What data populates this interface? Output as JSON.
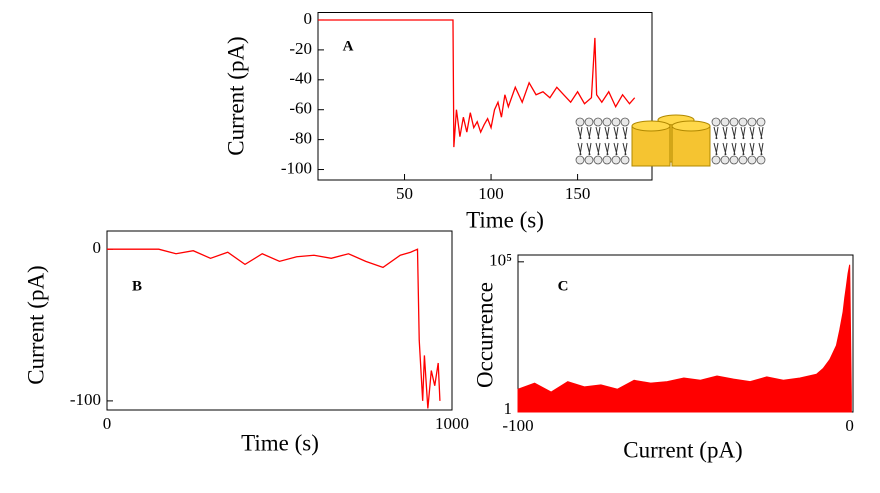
{
  "chart_data": [
    {
      "type": "line",
      "annotation": "A",
      "xlabel": "Time (s)",
      "ylabel": "Current (pA)",
      "color": "#ff0000",
      "x": [
        0,
        78,
        78.5,
        80,
        82,
        84,
        86,
        88,
        90,
        92,
        94,
        96,
        98,
        100,
        102,
        104,
        106,
        108,
        110,
        114,
        118,
        122,
        126,
        130,
        134,
        138,
        142,
        146,
        150,
        154,
        158,
        160,
        161,
        164,
        168,
        172,
        176,
        180,
        183
      ],
      "values": [
        0,
        0,
        -85,
        -60,
        -78,
        -65,
        -75,
        -62,
        -72,
        -68,
        -75,
        -70,
        -66,
        -72,
        -60,
        -55,
        -65,
        -50,
        -58,
        -45,
        -55,
        -42,
        -50,
        -48,
        -52,
        -45,
        -50,
        -55,
        -48,
        -56,
        -52,
        -12,
        -50,
        -55,
        -48,
        -58,
        -50,
        -56,
        -52
      ],
      "xlim": [
        0,
        193
      ],
      "ylim": [
        -107,
        5
      ],
      "xticks": [
        50,
        100,
        150
      ],
      "yticks": [
        0,
        -20,
        -40,
        -60,
        -80,
        -100
      ]
    },
    {
      "type": "line",
      "annotation": "B",
      "xlabel": "Time (s)",
      "ylabel": "Current (pA)",
      "color": "#ff0000",
      "x": [
        0,
        50,
        150,
        200,
        250,
        300,
        350,
        400,
        450,
        500,
        550,
        600,
        650,
        700,
        750,
        800,
        850,
        880,
        900,
        905,
        915,
        920,
        930,
        940,
        950,
        960,
        965
      ],
      "values": [
        0,
        0,
        0,
        -3,
        -1,
        -6,
        -2,
        -10,
        -3,
        -8,
        -5,
        -4,
        -6,
        -3,
        -8,
        -12,
        -4,
        -2,
        0,
        -60,
        -100,
        -70,
        -105,
        -80,
        -90,
        -75,
        -100
      ],
      "xlim": [
        0,
        1000
      ],
      "ylim": [
        -106,
        12
      ],
      "xticks": [
        0,
        1000
      ],
      "yticks": [
        0,
        -100
      ]
    },
    {
      "type": "area",
      "annotation": "C",
      "xlabel": "Current (pA)",
      "ylabel": "Occurrence",
      "color": "#ff0000",
      "log_y": true,
      "x": [
        -100,
        -95,
        -90,
        -85,
        -80,
        -75,
        -70,
        -65,
        -60,
        -55,
        -50,
        -45,
        -40,
        -35,
        -30,
        -25,
        -20,
        -15,
        -10,
        -8,
        -6,
        -4,
        -3,
        -2,
        -1.5,
        -1,
        -0.5,
        0,
        0.5
      ],
      "values": [
        5,
        8,
        4,
        9,
        6,
        7,
        5,
        10,
        8,
        9,
        12,
        10,
        14,
        11,
        9,
        13,
        10,
        12,
        16,
        25,
        50,
        150,
        500,
        2000,
        6000,
        15000,
        40000,
        80000,
        3
      ],
      "xlim": [
        -100,
        1
      ],
      "ylim": [
        0.85,
        170000
      ],
      "xticks": [
        -100,
        0
      ],
      "yticks": [
        1,
        {
          "value": 100000,
          "label": "10⁵"
        }
      ]
    }
  ]
}
